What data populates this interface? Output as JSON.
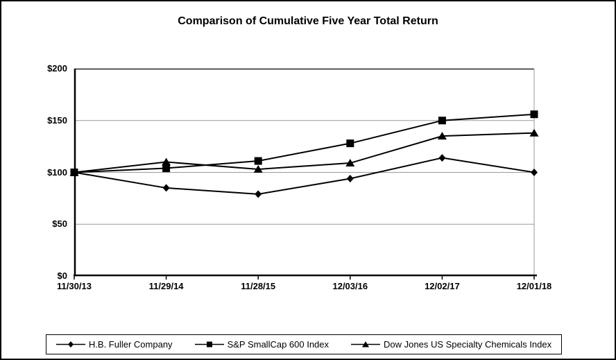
{
  "chart_data": {
    "type": "line",
    "title": "Comparison of Cumulative Five Year Total Return",
    "categories": [
      "11/30/13",
      "11/29/14",
      "11/28/15",
      "12/03/16",
      "12/02/17",
      "12/01/18"
    ],
    "series": [
      {
        "name": "H.B. Fuller Company",
        "marker": "diamond",
        "values": [
          100,
          85,
          79,
          94,
          114,
          100
        ]
      },
      {
        "name": "S&P SmallCap 600 Index",
        "marker": "square",
        "values": [
          100,
          104,
          111,
          128,
          150,
          156
        ]
      },
      {
        "name": "Dow Jones US Specialty Chemicals Index",
        "marker": "triangle",
        "values": [
          100,
          110,
          103,
          109,
          135,
          138
        ]
      }
    ],
    "ylim": [
      0,
      200
    ],
    "y_ticks": [
      {
        "label": "$200",
        "value": 200
      },
      {
        "label": "$150",
        "value": 150
      },
      {
        "label": "$100",
        "value": 100
      },
      {
        "label": "$50",
        "value": 50
      },
      {
        "label": "$0",
        "value": 0
      }
    ],
    "gridlines": [
      50,
      100,
      150
    ],
    "xlabel": "",
    "ylabel": "",
    "grid": true,
    "legend_position": "bottom",
    "colors": {
      "series": "#000000",
      "grid": "#999999",
      "axis": "#000000",
      "background": "#ffffff"
    }
  }
}
